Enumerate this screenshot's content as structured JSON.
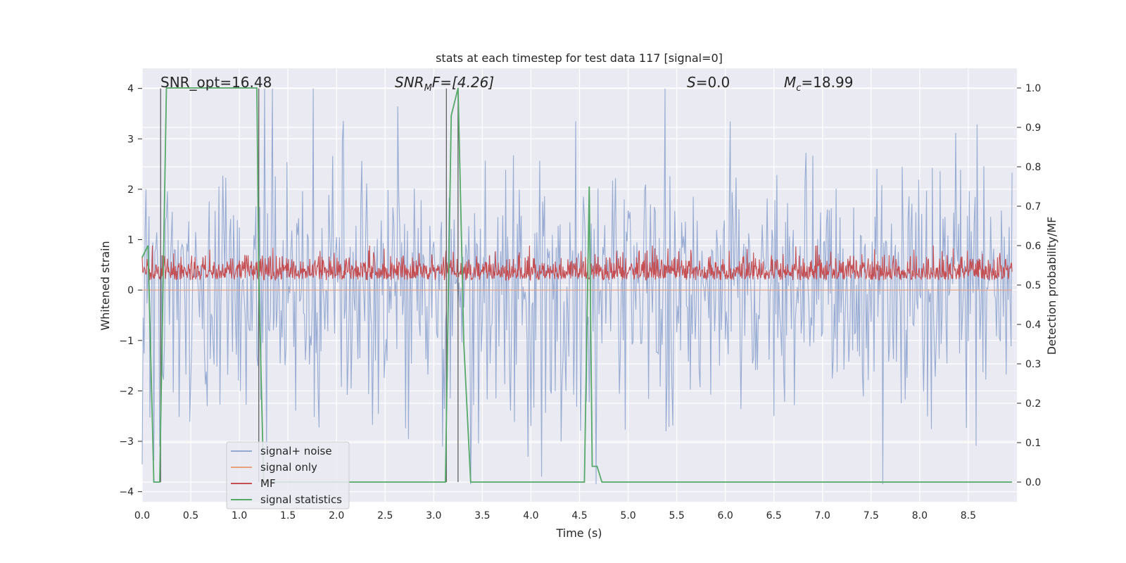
{
  "chart_data": {
    "type": "line",
    "title": "stats at each timestep for test data 117 [signal=0]",
    "xlabel": "Time (s)",
    "ylabel": "Whitened strain",
    "ylabel_right": "Detection probability/MF",
    "xlim": [
      0.0,
      9.0
    ],
    "ylim": [
      -4.2,
      4.4
    ],
    "ylim_right": [
      -0.05,
      1.05
    ],
    "xticks": [
      0.0,
      0.5,
      1.0,
      1.5,
      2.0,
      2.5,
      3.0,
      3.5,
      4.0,
      4.5,
      5.0,
      5.5,
      6.0,
      6.5,
      7.0,
      7.5,
      8.0,
      8.5
    ],
    "xtick_labels": [
      "0.0",
      "0.5",
      "1.0",
      "1.5",
      "2.0",
      "2.5",
      "3.0",
      "3.5",
      "4.0",
      "4.5",
      "5.0",
      "5.5",
      "6.0",
      "6.5",
      "7.0",
      "7.5",
      "8.0",
      "8.5"
    ],
    "yticks": [
      -4,
      -3,
      -2,
      -1,
      0,
      1,
      2,
      3,
      4
    ],
    "ytick_labels": [
      "−4",
      "−3",
      "−2",
      "−1",
      "0",
      "1",
      "2",
      "3",
      "4"
    ],
    "yticks_right": [
      0.0,
      0.1,
      0.2,
      0.3,
      0.4,
      0.5,
      0.6,
      0.7,
      0.8,
      0.9,
      1.0
    ],
    "ytick_labels_right": [
      "0.0",
      "0.1",
      "0.2",
      "0.3",
      "0.4",
      "0.5",
      "0.6",
      "0.7",
      "0.8",
      "0.9",
      "1.0"
    ],
    "grid": true,
    "legend_position": "lower-left",
    "annotations": [
      {
        "label": "SNR_opt=16.48"
      },
      {
        "label_main": "SNR",
        "label_sub": "M",
        "label_rest": "F=[4.26]"
      },
      {
        "label_main": "S",
        "label_rest": "=0.0"
      },
      {
        "label_main": "M",
        "label_sub": "c",
        "label_rest": "=18.99"
      }
    ],
    "vlines_x": [
      0.19,
      1.2,
      3.13,
      3.25
    ],
    "series": [
      {
        "name": "signal+ noise",
        "color": "#92a8d1",
        "axis": "left",
        "envelope": {
          "x_step": 0.01,
          "typical_amp": 1.5,
          "peak_max": 4.0,
          "peak_min": -3.85
        }
      },
      {
        "name": "signal only",
        "color": "#e8a07f",
        "axis": "left",
        "values_constant": 0.0
      },
      {
        "name": "MF",
        "color": "#c44e52",
        "axis": "right",
        "envelope": {
          "x_step": 0.005,
          "baseline": 0.53,
          "spread": 0.05,
          "peak_max": 0.6
        }
      },
      {
        "name": "signal statistics",
        "color": "#55a868",
        "axis": "right",
        "x": [
          0.0,
          0.06,
          0.12,
          0.18,
          0.25,
          1.18,
          1.2,
          1.25,
          3.12,
          3.18,
          3.25,
          3.31,
          3.38,
          4.55,
          4.6,
          4.63,
          4.68,
          4.73,
          8.95
        ],
        "y": [
          0.57,
          0.6,
          0.0,
          0.0,
          1.0,
          1.0,
          0.52,
          0.0,
          0.0,
          0.93,
          1.0,
          0.35,
          0.0,
          0.0,
          0.75,
          0.04,
          0.04,
          0.0,
          0.0
        ]
      }
    ]
  }
}
